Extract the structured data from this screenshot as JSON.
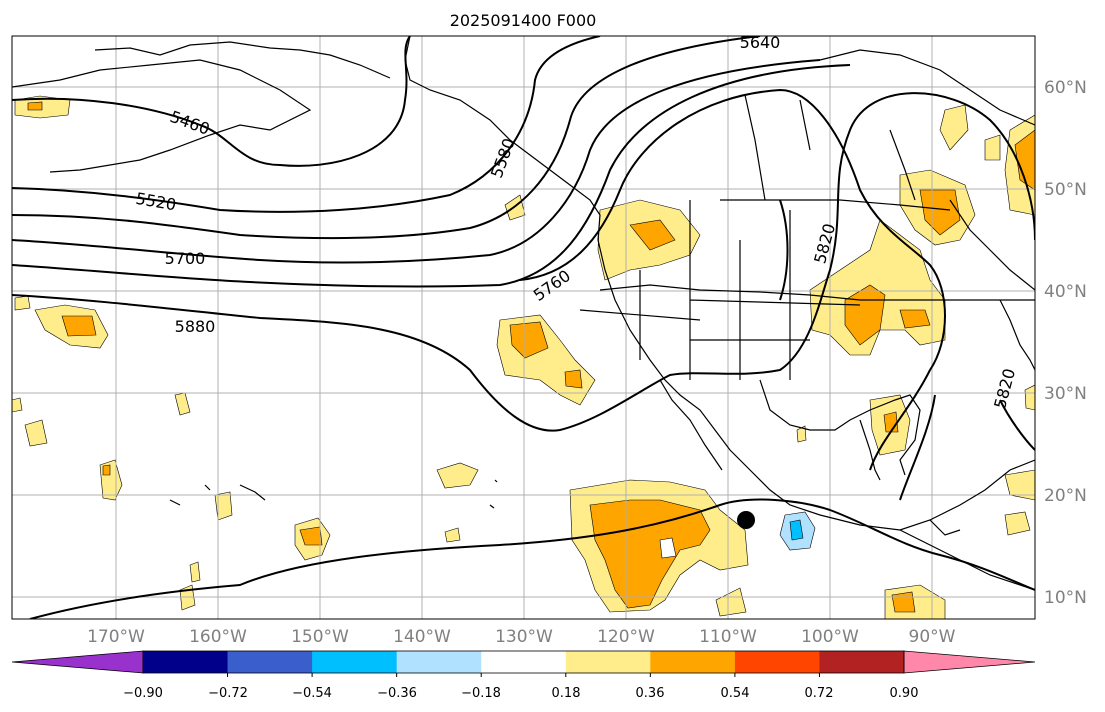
{
  "title": "2025091400 F000",
  "lat_labels": [
    "60°N",
    "50°N",
    "40°N",
    "30°N",
    "20°N",
    "10°N"
  ],
  "lon_labels": [
    "170°W",
    "160°W",
    "150°W",
    "140°W",
    "130°W",
    "120°W",
    "110°W",
    "100°W",
    "90°W"
  ],
  "contour_labels": [
    "5640",
    "5460",
    "5520",
    "5700",
    "5880",
    "5760",
    "5820",
    "5820",
    "5580"
  ],
  "colorbar": {
    "tick_labels": [
      "−0.90",
      "−0.72",
      "−0.54",
      "−0.36",
      "−0.18",
      "0.18",
      "0.36",
      "0.54",
      "0.72",
      "0.90"
    ],
    "colors": [
      "#9932cc",
      "#00008b",
      "#3a5fcd",
      "#00bfff",
      "#b0e2ff",
      "#ffffff",
      "#ffec8b",
      "#ffa500",
      "#ff4500",
      "#b22222",
      "#ff88aa"
    ]
  },
  "colors": {
    "positive_light": "#ffec8b",
    "positive_mid": "#ffa500",
    "negative_light": "#b0e2ff",
    "negative_mid": "#00bfff",
    "marker": "#000000"
  }
}
